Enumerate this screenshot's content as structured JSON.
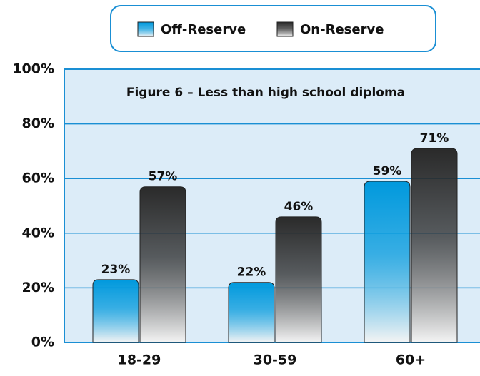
{
  "chart_data": {
    "type": "bar",
    "title": "Figure 6 – Less than high school diploma",
    "categories": [
      "18-29",
      "30-59",
      "60+"
    ],
    "series": [
      {
        "name": "Off-Reserve",
        "color": "#0099dd",
        "values": [
          23,
          22,
          59
        ],
        "value_labels": [
          "23%",
          "22%",
          "59%"
        ]
      },
      {
        "name": "On-Reserve",
        "color": "#2a2a2a",
        "values": [
          57,
          46,
          71
        ],
        "value_labels": [
          "57%",
          "46%",
          "71%"
        ]
      }
    ],
    "ylim": [
      0,
      100
    ],
    "yticks": [
      {
        "value": 0,
        "label": "0%"
      },
      {
        "value": 20,
        "label": "20%"
      },
      {
        "value": 40,
        "label": "40%"
      },
      {
        "value": 60,
        "label": "60%"
      },
      {
        "value": 80,
        "label": "80%"
      },
      {
        "value": 100,
        "label": "100%"
      }
    ],
    "grid": true
  }
}
